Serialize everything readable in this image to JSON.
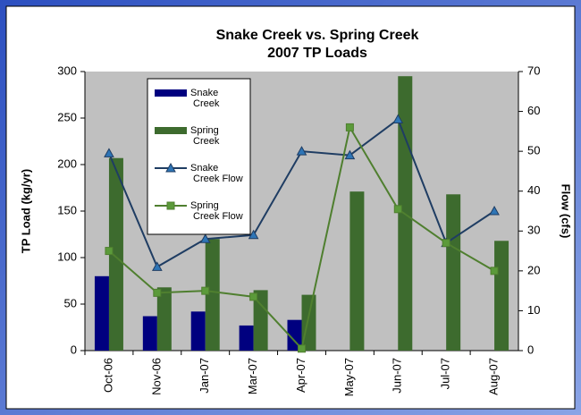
{
  "chart_data": {
    "type": "bar_line",
    "title": "Snake Creek vs. Spring Creek",
    "subtitle": "2007 TP Loads",
    "ylabel": "TP Load (kg/yr)",
    "y2label": "Flow (cfs)",
    "categories": [
      "Oct-06",
      "Nov-06",
      "Jan-07",
      "Mar-07",
      "Apr-07",
      "May-07",
      "Jun-07",
      "Jul-07",
      "Aug-07"
    ],
    "ylim": [
      0,
      300
    ],
    "yticks": [
      0,
      50,
      100,
      150,
      200,
      250,
      300
    ],
    "y2lim": [
      0,
      70
    ],
    "y2ticks": [
      0,
      10,
      20,
      30,
      40,
      50,
      60,
      70
    ],
    "grid": false,
    "legend": "upper left",
    "series": [
      {
        "name": "Snake Creek",
        "type": "bar",
        "color": "#00007f",
        "values": [
          80,
          37,
          42,
          27,
          33,
          null,
          null,
          null,
          null
        ]
      },
      {
        "name": "Spring Creek",
        "type": "bar",
        "color": "#3d6b2e",
        "values": [
          207,
          68,
          120,
          65,
          60,
          171,
          295,
          168,
          118
        ]
      },
      {
        "name": "Snake Creek Flow",
        "type": "line",
        "axis": "y2",
        "color": "#1f3d63",
        "marker": "triangle",
        "marker_color": "#2e75b6",
        "values": [
          49.5,
          21,
          28,
          29,
          50,
          49,
          58,
          27,
          35
        ]
      },
      {
        "name": "Spring Creek Flow",
        "type": "line",
        "axis": "y2",
        "color": "#4f7f2f",
        "marker": "square",
        "marker_color": "#5b9a3a",
        "values": [
          25,
          14.5,
          15,
          13.5,
          0.5,
          56,
          35.5,
          27,
          20
        ]
      }
    ]
  }
}
